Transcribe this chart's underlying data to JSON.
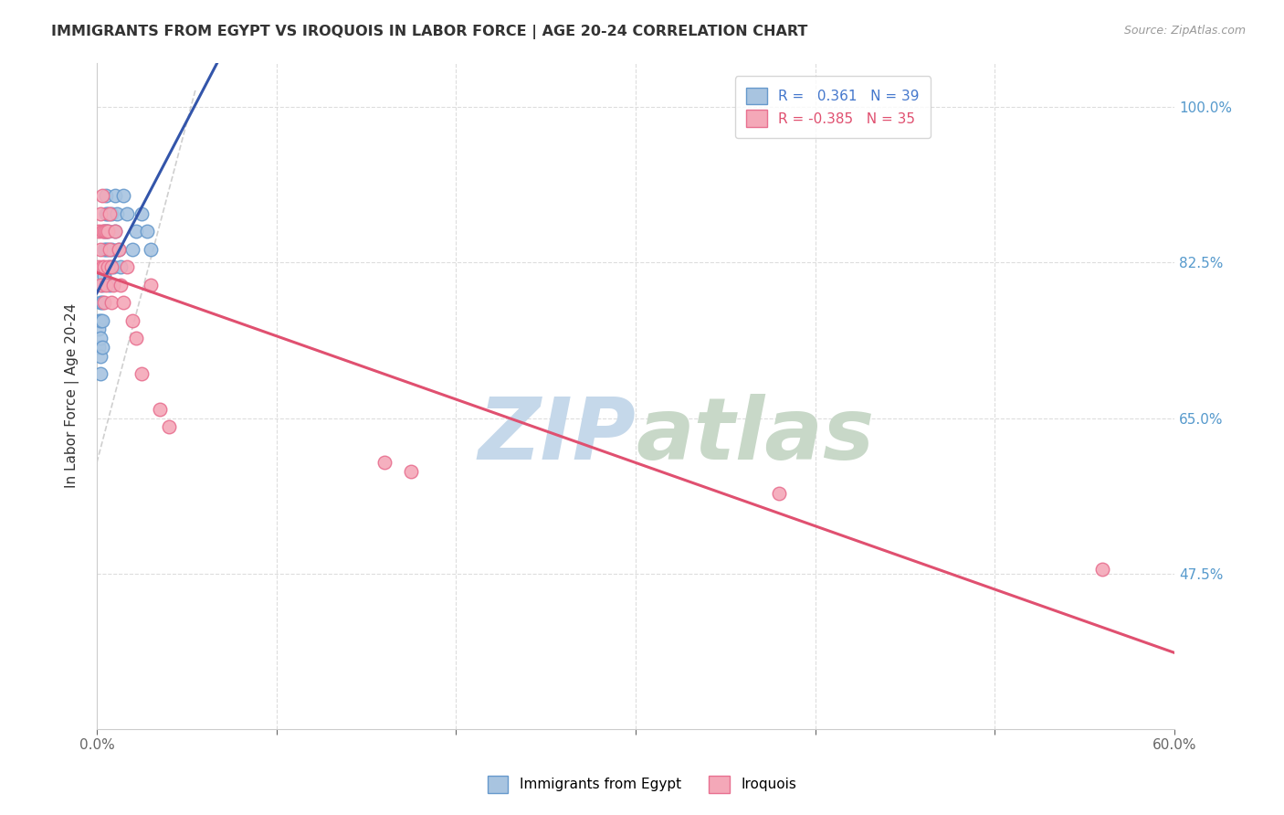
{
  "title": "IMMIGRANTS FROM EGYPT VS IROQUOIS IN LABOR FORCE | AGE 20-24 CORRELATION CHART",
  "source": "Source: ZipAtlas.com",
  "ylabel": "In Labor Force | Age 20-24",
  "ytick_labels": [
    "100.0%",
    "82.5%",
    "65.0%",
    "47.5%"
  ],
  "ytick_values": [
    1.0,
    0.825,
    0.65,
    0.475
  ],
  "xlim": [
    0.0,
    0.6
  ],
  "ylim": [
    0.3,
    1.05
  ],
  "legend_blue_r": "0.361",
  "legend_blue_n": "39",
  "legend_pink_r": "-0.385",
  "legend_pink_n": "35",
  "blue_color": "#a8c4e0",
  "pink_color": "#f4a8b8",
  "blue_edge_color": "#6699cc",
  "pink_edge_color": "#e87090",
  "trend_blue_color": "#3355aa",
  "trend_pink_color": "#e05070",
  "watermark_color": "#c8d8e8",
  "egypt_x": [
    0.001,
    0.001,
    0.001,
    0.002,
    0.002,
    0.002,
    0.002,
    0.002,
    0.003,
    0.003,
    0.003,
    0.003,
    0.004,
    0.004,
    0.004,
    0.005,
    0.005,
    0.005,
    0.005,
    0.006,
    0.006,
    0.006,
    0.007,
    0.007,
    0.008,
    0.008,
    0.009,
    0.01,
    0.01,
    0.011,
    0.012,
    0.013,
    0.015,
    0.017,
    0.02,
    0.022,
    0.025,
    0.028,
    0.03
  ],
  "egypt_y": [
    0.76,
    0.75,
    0.73,
    0.78,
    0.76,
    0.74,
    0.72,
    0.7,
    0.8,
    0.78,
    0.76,
    0.73,
    0.86,
    0.84,
    0.81,
    0.9,
    0.88,
    0.86,
    0.84,
    0.88,
    0.86,
    0.84,
    0.82,
    0.8,
    0.88,
    0.84,
    0.82,
    0.9,
    0.86,
    0.88,
    0.84,
    0.82,
    0.9,
    0.88,
    0.84,
    0.86,
    0.88,
    0.86,
    0.84
  ],
  "iroquois_x": [
    0.001,
    0.001,
    0.002,
    0.002,
    0.002,
    0.003,
    0.003,
    0.003,
    0.004,
    0.004,
    0.004,
    0.005,
    0.005,
    0.006,
    0.006,
    0.007,
    0.007,
    0.008,
    0.008,
    0.009,
    0.01,
    0.012,
    0.013,
    0.015,
    0.017,
    0.02,
    0.022,
    0.025,
    0.03,
    0.035,
    0.04,
    0.16,
    0.175,
    0.38,
    0.56
  ],
  "iroquois_y": [
    0.86,
    0.82,
    0.88,
    0.84,
    0.8,
    0.9,
    0.86,
    0.82,
    0.86,
    0.82,
    0.78,
    0.86,
    0.8,
    0.86,
    0.82,
    0.88,
    0.84,
    0.82,
    0.78,
    0.8,
    0.86,
    0.84,
    0.8,
    0.78,
    0.82,
    0.76,
    0.74,
    0.7,
    0.8,
    0.66,
    0.64,
    0.6,
    0.59,
    0.565,
    0.48
  ]
}
